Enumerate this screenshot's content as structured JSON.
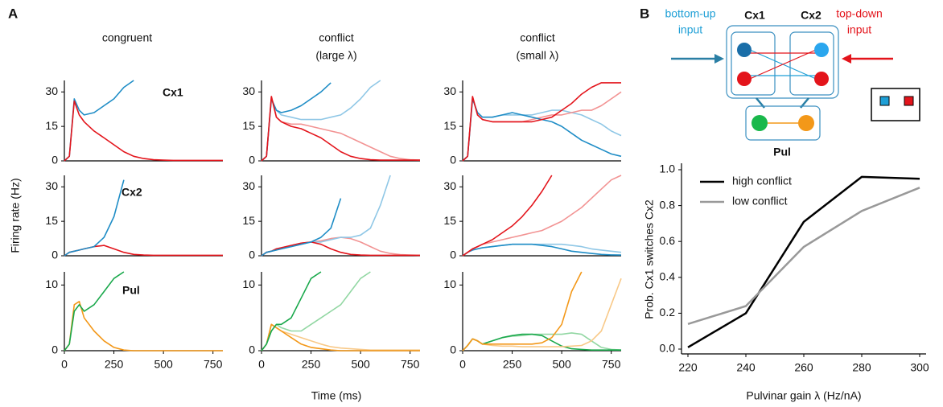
{
  "panel_a": {
    "label": "A",
    "ylabel": "Firing rate (Hz)",
    "xlabel": "Time (ms)",
    "column_titles": [
      [
        "congruent"
      ],
      [
        "conflict",
        "(large λ)"
      ],
      [
        "conflict",
        "(small λ)"
      ]
    ]
  },
  "panel_b_diagram": {
    "label": "B",
    "cx1": "Cx1",
    "cx2": "Cx2",
    "pul": "Pul",
    "bottom_up": [
      "bottom-up",
      "input"
    ],
    "top_down": [
      "top-down",
      "input"
    ]
  },
  "chart_data": [
    {
      "type": "line",
      "annotation": "Cx1",
      "x": [
        0,
        25,
        50,
        75,
        100,
        150,
        200,
        250,
        300,
        350,
        400,
        450,
        500,
        550,
        600,
        650,
        700,
        750,
        800
      ],
      "xlim": [
        0,
        800
      ],
      "ylim": [
        0,
        35
      ],
      "yticks": [
        0,
        15,
        30
      ],
      "series": [
        {
          "color": "#1f8dc6",
          "values": [
            0,
            2,
            27,
            22,
            20,
            21,
            24,
            27,
            32,
            35,
            null,
            null,
            null,
            null,
            null,
            null,
            null,
            null,
            null
          ]
        },
        {
          "color": "#e3141b",
          "values": [
            0,
            2,
            26,
            20,
            17,
            13,
            10,
            7,
            4,
            2,
            1,
            0.5,
            0.3,
            0.2,
            0.2,
            0.2,
            0.2,
            0.2,
            0.2
          ]
        }
      ]
    },
    {
      "type": "line",
      "x": [
        0,
        25,
        50,
        75,
        100,
        150,
        200,
        250,
        300,
        350,
        400,
        450,
        500,
        550,
        600,
        650,
        700,
        750,
        800
      ],
      "xlim": [
        0,
        800
      ],
      "ylim": [
        0,
        35
      ],
      "yticks": [
        0,
        15,
        30
      ],
      "series": [
        {
          "color": "#8fc7e6",
          "values": [
            0,
            2,
            27,
            22,
            20,
            19,
            18,
            18,
            18,
            19,
            20,
            23,
            27,
            32,
            35,
            null,
            null,
            null,
            null
          ]
        },
        {
          "color": "#f29393",
          "values": [
            0,
            2,
            28,
            19,
            17,
            16,
            16,
            15,
            14,
            13,
            12,
            10,
            8,
            6,
            4,
            2,
            1,
            0.5,
            0.3
          ]
        },
        {
          "color": "#1f8dc6",
          "values": [
            0,
            2,
            27,
            22,
            21,
            22,
            24,
            27,
            30,
            34,
            null,
            null,
            null,
            null,
            null,
            null,
            null,
            null,
            null
          ]
        },
        {
          "color": "#e3141b",
          "values": [
            0,
            2,
            28,
            19,
            17,
            15,
            14,
            12,
            10,
            7,
            4,
            2,
            1,
            0.5,
            0.3,
            0.3,
            0.3,
            0.3,
            0.3
          ]
        }
      ]
    },
    {
      "type": "line",
      "x": [
        0,
        25,
        50,
        75,
        100,
        150,
        200,
        250,
        300,
        350,
        400,
        450,
        500,
        550,
        600,
        650,
        700,
        750,
        800
      ],
      "xlim": [
        0,
        800
      ],
      "ylim": [
        0,
        35
      ],
      "yticks": [
        0,
        15,
        30
      ],
      "series": [
        {
          "color": "#8fc7e6",
          "values": [
            0,
            2,
            27,
            21,
            19,
            19,
            20,
            20,
            20,
            20,
            21,
            22,
            22,
            21,
            20,
            18,
            16,
            13,
            11
          ]
        },
        {
          "color": "#f29393",
          "values": [
            0,
            2,
            28,
            20,
            18,
            17,
            17,
            17,
            17,
            18,
            19,
            20,
            20,
            21,
            22,
            22,
            24,
            27,
            30
          ]
        },
        {
          "color": "#1f8dc6",
          "values": [
            0,
            2,
            27,
            21,
            19,
            19,
            20,
            21,
            20,
            19,
            18,
            17,
            15,
            12,
            9,
            7,
            5,
            3,
            2
          ]
        },
        {
          "color": "#e3141b",
          "values": [
            0,
            2,
            28,
            20,
            18,
            17,
            17,
            17,
            17,
            17,
            18,
            19,
            22,
            25,
            29,
            32,
            34,
            34,
            34
          ]
        }
      ]
    },
    {
      "type": "line",
      "annotation": "Cx2",
      "x": [
        0,
        25,
        50,
        75,
        100,
        150,
        200,
        250,
        300,
        350,
        400,
        450,
        500,
        550,
        600,
        650,
        700,
        750,
        800
      ],
      "xlim": [
        0,
        800
      ],
      "ylim": [
        0,
        35
      ],
      "yticks": [
        0,
        15,
        30
      ],
      "series": [
        {
          "color": "#e3141b",
          "values": [
            0,
            1.5,
            2,
            2.5,
            3,
            4,
            4.5,
            3,
            1.5,
            0.6,
            0.3,
            0.2,
            0.2,
            0.2,
            0.2,
            0.2,
            0.2,
            0.2,
            0.2
          ]
        },
        {
          "color": "#1f8dc6",
          "values": [
            0,
            1.5,
            2,
            2.5,
            3,
            4,
            8,
            17,
            33,
            null,
            null,
            null,
            null,
            null,
            null,
            null,
            null,
            null,
            null
          ]
        }
      ]
    },
    {
      "type": "line",
      "x": [
        0,
        25,
        50,
        75,
        100,
        150,
        200,
        250,
        300,
        350,
        400,
        450,
        500,
        550,
        600,
        650,
        700,
        750,
        800
      ],
      "xlim": [
        0,
        800
      ],
      "ylim": [
        0,
        35
      ],
      "yticks": [
        0,
        15,
        30
      ],
      "series": [
        {
          "color": "#f29393",
          "values": [
            0,
            1.5,
            2,
            3,
            3.5,
            4.5,
            5.5,
            6,
            6.5,
            7.5,
            8,
            7.5,
            6,
            4,
            2,
            1,
            0.5,
            0.3,
            0.2
          ]
        },
        {
          "color": "#8fc7e6",
          "values": [
            0,
            1.5,
            2,
            2.5,
            3,
            4,
            5,
            6,
            6,
            7,
            8,
            8,
            9,
            12,
            22,
            35,
            null,
            null,
            null
          ]
        },
        {
          "color": "#e3141b",
          "values": [
            0,
            1.5,
            2,
            3,
            3.5,
            4.5,
            5.5,
            6,
            5,
            3,
            1.5,
            0.6,
            0.3,
            0.2,
            0.2,
            0.2,
            0.2,
            0.2,
            0.2
          ]
        },
        {
          "color": "#1f8dc6",
          "values": [
            0,
            1.5,
            2,
            2.5,
            3,
            4,
            5,
            6,
            8,
            12,
            25,
            null,
            null,
            null,
            null,
            null,
            null,
            null,
            null
          ]
        }
      ]
    },
    {
      "type": "line",
      "x": [
        0,
        25,
        50,
        75,
        100,
        150,
        200,
        250,
        300,
        350,
        400,
        450,
        500,
        550,
        600,
        650,
        700,
        750,
        800
      ],
      "xlim": [
        0,
        800
      ],
      "ylim": [
        0,
        35
      ],
      "yticks": [
        0,
        15,
        30
      ],
      "series": [
        {
          "color": "#8fc7e6",
          "values": [
            0,
            1.5,
            2.5,
            3,
            3.5,
            4,
            4.5,
            5,
            5,
            5,
            5,
            5,
            5,
            4.5,
            4,
            3,
            2.5,
            2,
            1.5
          ]
        },
        {
          "color": "#1f8dc6",
          "values": [
            0,
            1.5,
            2.5,
            3,
            3.5,
            4,
            4.5,
            5,
            5,
            5,
            4.5,
            4,
            3,
            2,
            1.5,
            1,
            0.6,
            0.4,
            0.3
          ]
        },
        {
          "color": "#f29393",
          "values": [
            0,
            1.5,
            3,
            4,
            5,
            6,
            7,
            8,
            9,
            10,
            11,
            13,
            15,
            18,
            21,
            25,
            29,
            33,
            35
          ]
        },
        {
          "color": "#e3141b",
          "values": [
            0,
            1.5,
            3,
            4,
            5,
            7,
            10,
            13,
            17,
            22,
            28,
            35,
            null,
            null,
            null,
            null,
            null,
            null,
            null
          ]
        }
      ]
    },
    {
      "type": "line",
      "annotation": "Pul",
      "x": [
        0,
        25,
        50,
        75,
        100,
        150,
        200,
        250,
        300,
        350,
        400,
        450,
        500,
        550,
        600,
        650,
        700,
        750,
        800
      ],
      "xlim": [
        0,
        800
      ],
      "xticks": [
        0,
        250,
        500,
        750
      ],
      "ylim": [
        0,
        12
      ],
      "yticks": [
        0,
        10
      ],
      "series": [
        {
          "color": "#f39819",
          "values": [
            0,
            1,
            7,
            7.5,
            5,
            3,
            1.5,
            0.5,
            0.1,
            0,
            0,
            0,
            0,
            0,
            0,
            0,
            0,
            0,
            0
          ]
        },
        {
          "color": "#19a84b",
          "values": [
            0,
            1,
            6,
            7,
            6,
            7,
            9,
            11,
            12,
            null,
            null,
            null,
            null,
            null,
            null,
            null,
            null,
            null,
            null
          ]
        }
      ]
    },
    {
      "type": "line",
      "x": [
        0,
        25,
        50,
        75,
        100,
        150,
        200,
        250,
        300,
        350,
        400,
        450,
        500,
        550,
        600,
        650,
        700,
        750,
        800
      ],
      "xlim": [
        0,
        800
      ],
      "xticks": [
        0,
        250,
        500,
        750
      ],
      "ylim": [
        0,
        12
      ],
      "yticks": [
        0,
        10
      ],
      "series": [
        {
          "color": "#f8c988",
          "values": [
            0,
            1,
            4,
            3.5,
            3,
            2.5,
            2,
            1.5,
            1,
            0.6,
            0.4,
            0.3,
            0.2,
            0.1,
            0.1,
            0.1,
            0.1,
            0.1,
            0.1
          ]
        },
        {
          "color": "#f39819",
          "values": [
            0,
            1,
            4,
            3.5,
            3,
            2,
            1,
            0.5,
            0.3,
            0.1,
            0,
            0,
            0,
            0,
            0,
            0,
            0,
            0,
            0
          ]
        },
        {
          "color": "#92d7a3",
          "values": [
            0,
            1,
            3,
            4,
            3.5,
            3,
            3,
            4,
            5,
            6,
            7,
            9,
            11,
            12,
            null,
            null,
            null,
            null,
            null
          ]
        },
        {
          "color": "#19a84b",
          "values": [
            0,
            1,
            3,
            4,
            4,
            5,
            8,
            11,
            12,
            null,
            null,
            null,
            null,
            null,
            null,
            null,
            null,
            null,
            null
          ]
        }
      ]
    },
    {
      "type": "line",
      "x": [
        0,
        25,
        50,
        75,
        100,
        150,
        200,
        250,
        300,
        350,
        400,
        450,
        500,
        550,
        600,
        650,
        700,
        750,
        800
      ],
      "xlim": [
        0,
        800
      ],
      "xticks": [
        0,
        250,
        500,
        750
      ],
      "ylim": [
        0,
        12
      ],
      "yticks": [
        0,
        10
      ],
      "series": [
        {
          "color": "#92d7a3",
          "values": [
            0,
            0.8,
            1.8,
            1.5,
            1,
            1.5,
            2,
            2.2,
            2.3,
            2.5,
            2.5,
            2.5,
            2.5,
            2.7,
            2.5,
            1.5,
            0.5,
            0.2,
            0.1
          ]
        },
        {
          "color": "#19a84b",
          "values": [
            0,
            0.8,
            1.8,
            1.5,
            1,
            1.5,
            2,
            2.3,
            2.5,
            2.5,
            2.3,
            1.5,
            0.7,
            0.3,
            0.2,
            0.1,
            0.1,
            0.1,
            0.1
          ]
        },
        {
          "color": "#f8c988",
          "values": [
            0,
            0.8,
            1.8,
            1.5,
            1,
            0.8,
            0.7,
            0.7,
            0.6,
            0.6,
            0.6,
            0.6,
            0.6,
            0.7,
            0.8,
            1.5,
            3,
            7,
            11
          ]
        },
        {
          "color": "#f39819",
          "values": [
            0,
            0.8,
            1.8,
            1.5,
            1,
            1,
            1,
            1,
            1,
            1,
            1.2,
            2,
            4,
            9,
            12,
            null,
            null,
            null,
            null
          ]
        }
      ]
    },
    {
      "type": "line",
      "xlabel": "Pulvinar gain λ (Hz/nA)",
      "ylabel": "Prob. Cx1 switches Cx2",
      "x": [
        220,
        240,
        260,
        280,
        300
      ],
      "xlim": [
        220,
        300
      ],
      "xticks": [
        220,
        240,
        260,
        280,
        300
      ],
      "ylim": [
        0,
        1
      ],
      "yticks": [
        {
          "value": 0,
          "label": "0.0"
        },
        0.2,
        0.4,
        0.6,
        0.8,
        {
          "value": 1,
          "label": "1.0"
        }
      ],
      "legend": "upper left",
      "series": [
        {
          "name": "high conflict",
          "color": "#000000",
          "values": [
            0.01,
            0.2,
            0.71,
            0.96,
            0.95
          ]
        },
        {
          "name": "low conflict",
          "color": "#999999",
          "values": [
            0.14,
            0.24,
            0.57,
            0.77,
            0.9
          ]
        }
      ]
    }
  ]
}
